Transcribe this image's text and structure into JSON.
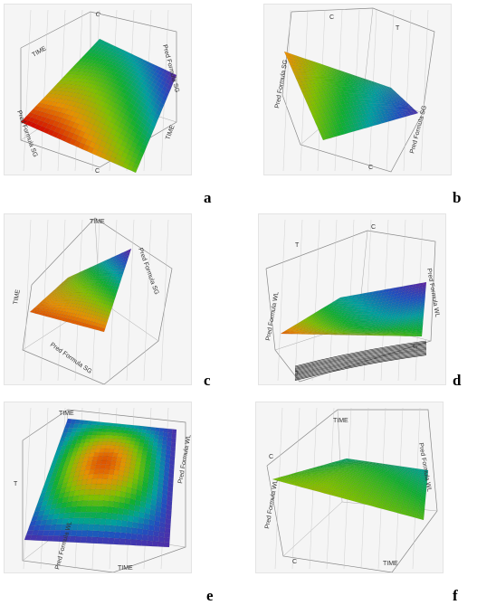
{
  "figure": {
    "panels": [
      {
        "id": "a",
        "letter": "a"
      },
      {
        "id": "b",
        "letter": "b"
      },
      {
        "id": "c",
        "letter": "c"
      },
      {
        "id": "d",
        "letter": "d"
      },
      {
        "id": "e",
        "letter": "e"
      },
      {
        "id": "f",
        "letter": "f"
      }
    ]
  },
  "chart_data": [
    {
      "panel": "a",
      "type": "surface",
      "axis_labels": [
        "TIME",
        "C",
        "Pred Formula SG",
        "TIME"
      ],
      "colormap": [
        "#d00000",
        "#e89000",
        "#80c000",
        "#10b030",
        "#00a0a0",
        "#2050c0",
        "#6020a0"
      ]
    },
    {
      "panel": "b",
      "type": "surface",
      "axis_labels": [
        "C",
        "T",
        "Pred Formula SG",
        "Pred Formula SG",
        "C"
      ],
      "colormap": [
        "#d00000",
        "#e89000",
        "#80c000",
        "#10b030",
        "#00a0a0",
        "#2050c0",
        "#6020a0"
      ]
    },
    {
      "panel": "c",
      "type": "surface",
      "axis_labels": [
        "TIME",
        "Pred Formula SG",
        "TIME",
        "Pred Formula SG"
      ],
      "colormap": [
        "#d00000",
        "#e89000",
        "#80c000",
        "#10b030",
        "#00a0a0",
        "#2050c0",
        "#6020a0"
      ]
    },
    {
      "panel": "d",
      "type": "surface",
      "axis_labels": [
        "C",
        "T",
        "Pred Formula WL",
        "Pred Formula WL",
        "T",
        "C"
      ],
      "colormap": [
        "#d00000",
        "#e89000",
        "#80c000",
        "#10b030",
        "#00a0a0",
        "#2050c0",
        "#6020a0"
      ]
    },
    {
      "panel": "e",
      "type": "surface",
      "axis_labels": [
        "TIME",
        "T",
        "Pred Formula WL",
        "Pred Formula WL",
        "TIME"
      ],
      "colormap": [
        "#d00000",
        "#e89000",
        "#80c000",
        "#10b030",
        "#00a0a0",
        "#2050c0",
        "#6020a0"
      ]
    },
    {
      "panel": "f",
      "type": "surface",
      "axis_labels": [
        "TIME",
        "C",
        "Pred Formula WL",
        "Pred Formula WL",
        "TIME",
        "C"
      ],
      "colormap": [
        "#d00000",
        "#e89000",
        "#80c000",
        "#10b030",
        "#00a0a0",
        "#2050c0",
        "#6020a0"
      ]
    }
  ]
}
